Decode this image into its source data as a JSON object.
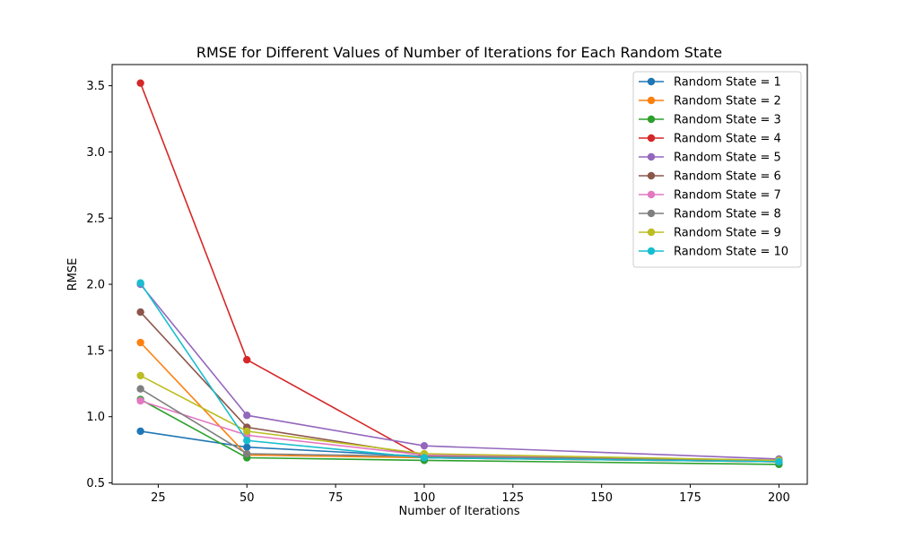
{
  "chart_data": {
    "type": "line",
    "title": "RMSE for Different Values of Number of Iterations for Each Random State",
    "xlabel": "Number of Iterations",
    "ylabel": "RMSE",
    "x": [
      20,
      50,
      100,
      200
    ],
    "xlim": [
      12,
      208
    ],
    "ylim": [
      0.49,
      3.66
    ],
    "xticks": [
      25,
      50,
      75,
      100,
      125,
      150,
      175,
      200
    ],
    "yticks": [
      0.5,
      1.0,
      1.5,
      2.0,
      2.5,
      3.0,
      3.5
    ],
    "grid": false,
    "legend_position": "top-right",
    "series": [
      {
        "name": "Random State = 1",
        "color": "#1f77b4",
        "values": [
          0.89,
          0.77,
          0.7,
          0.66
        ]
      },
      {
        "name": "Random State = 2",
        "color": "#ff7f0e",
        "values": [
          1.56,
          0.71,
          0.69,
          0.66
        ]
      },
      {
        "name": "Random State = 3",
        "color": "#2ca02c",
        "values": [
          1.13,
          0.69,
          0.67,
          0.64
        ]
      },
      {
        "name": "Random State = 4",
        "color": "#d62728",
        "values": [
          3.52,
          1.43,
          0.69,
          0.66
        ]
      },
      {
        "name": "Random State = 5",
        "color": "#9467bd",
        "values": [
          2.0,
          1.01,
          0.78,
          0.68
        ]
      },
      {
        "name": "Random State = 6",
        "color": "#8c564b",
        "values": [
          1.79,
          0.92,
          0.71,
          0.67
        ]
      },
      {
        "name": "Random State = 7",
        "color": "#e377c2",
        "values": [
          1.12,
          0.86,
          0.71,
          0.67
        ]
      },
      {
        "name": "Random State = 8",
        "color": "#7f7f7f",
        "values": [
          1.21,
          0.72,
          0.7,
          0.67
        ]
      },
      {
        "name": "Random State = 9",
        "color": "#bcbd22",
        "values": [
          1.31,
          0.89,
          0.72,
          0.67
        ]
      },
      {
        "name": "Random State = 10",
        "color": "#17becf",
        "values": [
          2.01,
          0.82,
          0.69,
          0.66
        ]
      }
    ]
  }
}
